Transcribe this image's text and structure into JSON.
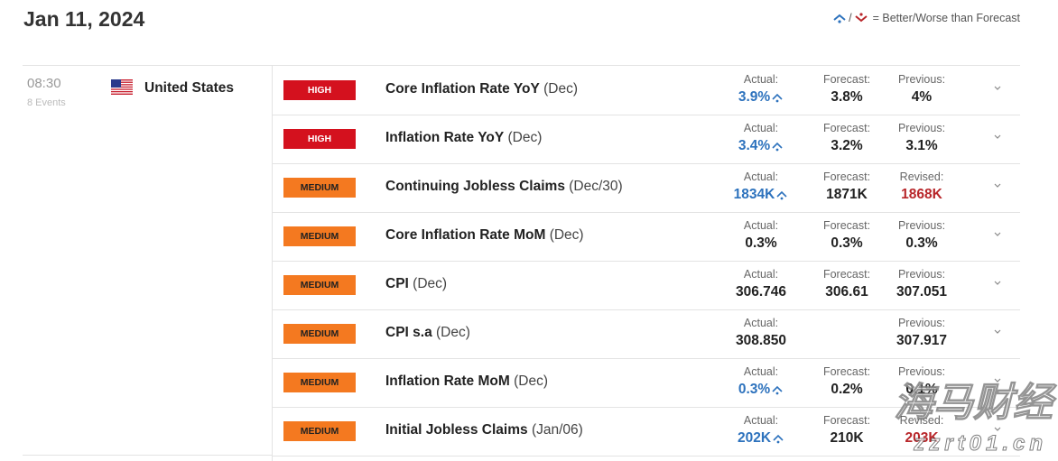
{
  "header": {
    "date": "Jan 11, 2024",
    "legend": {
      "separator": "/",
      "text": "= Better/Worse than Forecast"
    }
  },
  "group": {
    "time": "08:30",
    "events_count": "8 Events",
    "country": "United States"
  },
  "events": [
    {
      "impact": "HIGH",
      "name": "Core Inflation Rate YoY",
      "period": "(Dec)",
      "actual_label": "Actual:",
      "actual": "3.9%",
      "actual_status": "better",
      "forecast_label": "Forecast:",
      "forecast": "3.8%",
      "previous_label": "Previous:",
      "previous": "4%"
    },
    {
      "impact": "HIGH",
      "name": "Inflation Rate YoY",
      "period": "(Dec)",
      "actual_label": "Actual:",
      "actual": "3.4%",
      "actual_status": "better",
      "forecast_label": "Forecast:",
      "forecast": "3.2%",
      "previous_label": "Previous:",
      "previous": "3.1%"
    },
    {
      "impact": "MEDIUM",
      "name": "Continuing Jobless Claims",
      "period": "(Dec/30)",
      "actual_label": "Actual:",
      "actual": "1834K",
      "actual_status": "better",
      "forecast_label": "Forecast:",
      "forecast": "1871K",
      "previous_label": "Revised:",
      "previous": "1868K",
      "previous_status": "worse"
    },
    {
      "impact": "MEDIUM",
      "name": "Core Inflation Rate MoM",
      "period": "(Dec)",
      "actual_label": "Actual:",
      "actual": "0.3%",
      "forecast_label": "Forecast:",
      "forecast": "0.3%",
      "previous_label": "Previous:",
      "previous": "0.3%"
    },
    {
      "impact": "MEDIUM",
      "name": "CPI",
      "period": "(Dec)",
      "actual_label": "Actual:",
      "actual": "306.746",
      "forecast_label": "Forecast:",
      "forecast": "306.61",
      "previous_label": "Previous:",
      "previous": "307.051"
    },
    {
      "impact": "MEDIUM",
      "name": "CPI s.a",
      "period": "(Dec)",
      "actual_label": "Actual:",
      "actual": "308.850",
      "previous_label": "Previous:",
      "previous": "307.917"
    },
    {
      "impact": "MEDIUM",
      "name": "Inflation Rate MoM",
      "period": "(Dec)",
      "actual_label": "Actual:",
      "actual": "0.3%",
      "actual_status": "better",
      "forecast_label": "Forecast:",
      "forecast": "0.2%",
      "previous_label": "Previous:",
      "previous": "0.1%"
    },
    {
      "impact": "MEDIUM",
      "name": "Initial Jobless Claims",
      "period": "(Jan/06)",
      "actual_label": "Actual:",
      "actual": "202K",
      "actual_status": "better",
      "forecast_label": "Forecast:",
      "forecast": "210K",
      "previous_label": "Revised:",
      "previous": "203K",
      "previous_status": "worse"
    }
  ],
  "watermark": {
    "text": "海马财经",
    "url": "zzrt01.cn"
  }
}
